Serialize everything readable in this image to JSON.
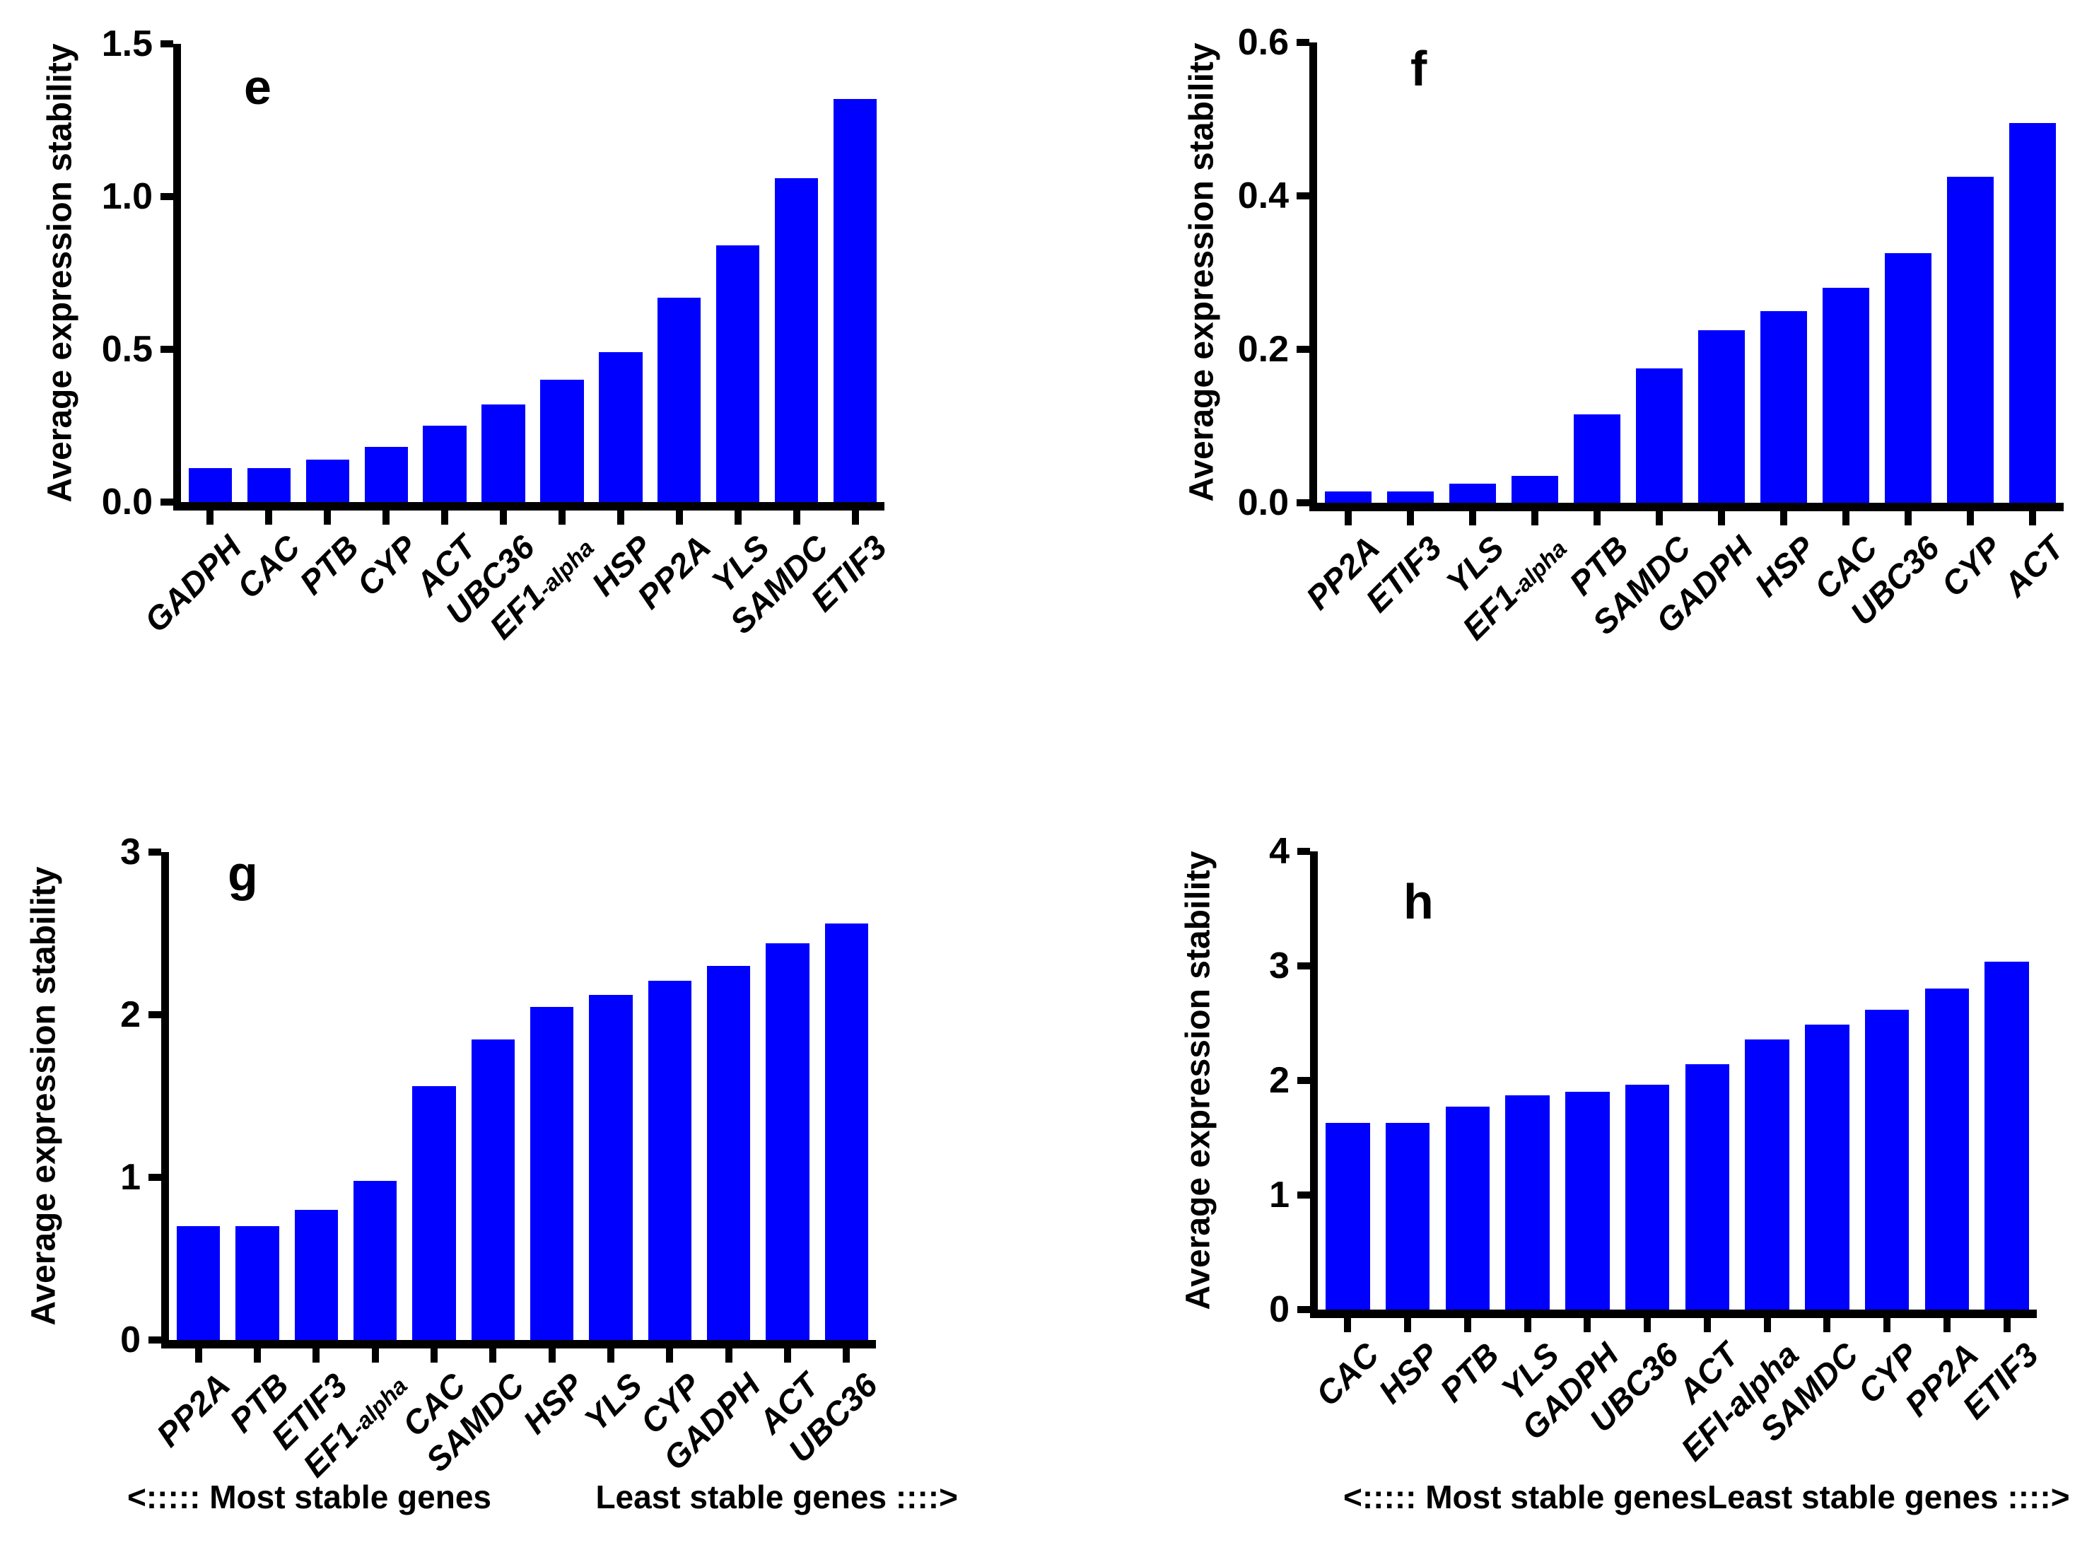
{
  "figure": {
    "background_color": "#ffffff",
    "bar_color": "#0000ff",
    "axis_color": "#000000",
    "text_color": "#000000"
  },
  "chart_data": [
    {
      "type": "bar",
      "panel_label": "e",
      "title": "",
      "xlabel": "",
      "ylabel": "Average expression stability",
      "ylim": [
        0,
        1.5
      ],
      "yticks": [
        "0.0",
        "0.5",
        "1.0",
        "1.5"
      ],
      "grid": false,
      "legend": false,
      "categories": [
        "GADPH",
        "CAC",
        "PTB",
        "CYP",
        "ACT",
        "UBC36",
        "EF1-alpha",
        "HSP",
        "PP2A",
        "YLS",
        "SAMDC",
        "ETIF3"
      ],
      "values": [
        0.11,
        0.11,
        0.14,
        0.18,
        0.25,
        0.32,
        0.4,
        0.49,
        0.67,
        0.84,
        1.06,
        1.32
      ]
    },
    {
      "type": "bar",
      "panel_label": "f",
      "title": "",
      "xlabel": "",
      "ylabel": "Average expression stability",
      "ylim": [
        0,
        0.6
      ],
      "yticks": [
        "0.0",
        "0.2",
        "0.4",
        "0.6"
      ],
      "grid": false,
      "legend": false,
      "categories": [
        "PP2A",
        "ETIF3",
        "YLS",
        "EF1-alpha",
        "PTB",
        "SAMDC",
        "GADPH",
        "HSP",
        "CAC",
        "UBC36",
        "CYP",
        "ACT"
      ],
      "values": [
        0.015,
        0.015,
        0.025,
        0.035,
        0.115,
        0.175,
        0.225,
        0.25,
        0.28,
        0.325,
        0.425,
        0.495
      ]
    },
    {
      "type": "bar",
      "panel_label": "g",
      "title": "",
      "xlabel": "",
      "ylabel": "Average expression stability",
      "ylim": [
        0,
        3
      ],
      "yticks": [
        "0",
        "1",
        "2",
        "3"
      ],
      "grid": false,
      "legend": false,
      "categories": [
        "PP2A",
        "PTB",
        "ETIF3",
        "EF1-alpha",
        "CAC",
        "SAMDC",
        "HSP",
        "YLS",
        "CYP",
        "GADPH",
        "ACT",
        "UBC36"
      ],
      "values": [
        0.7,
        0.7,
        0.8,
        0.98,
        1.56,
        1.85,
        2.05,
        2.12,
        2.21,
        2.3,
        2.44,
        2.56
      ],
      "caption_left": "<::::: Most stable genes",
      "caption_right": "Least stable genes ::::>"
    },
    {
      "type": "bar",
      "panel_label": "h",
      "title": "",
      "xlabel": "",
      "ylabel": "Average expression stability",
      "ylim": [
        0,
        4
      ],
      "yticks": [
        "0",
        "1",
        "2",
        "3",
        "4"
      ],
      "grid": false,
      "legend": false,
      "categories": [
        "CAC",
        "HSP",
        "PTB",
        "YLS",
        "GADPH",
        "UBC36",
        "ACT",
        "EFI-alpha",
        "SAMDC",
        "CYP",
        "PP2A",
        "ETIF3"
      ],
      "values": [
        1.63,
        1.63,
        1.77,
        1.87,
        1.9,
        1.96,
        2.14,
        2.36,
        2.49,
        2.62,
        2.8,
        3.04
      ],
      "caption_left": "<::::: Most stable genes",
      "caption_right": "Least stable genes ::::>"
    }
  ]
}
